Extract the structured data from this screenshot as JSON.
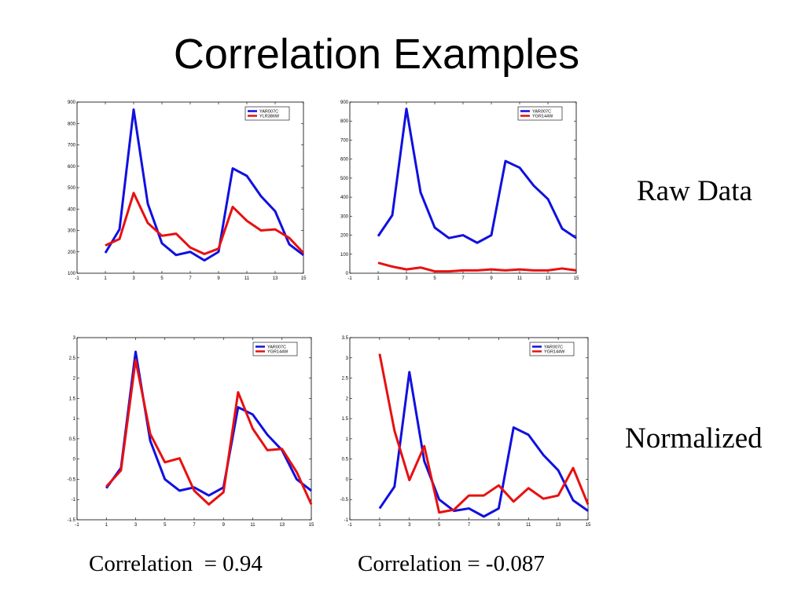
{
  "title": "Correlation Examples",
  "row_labels": {
    "raw": "Raw Data",
    "normalized": "Normalized"
  },
  "captions": {
    "left": "Correlation  = 0.94",
    "right": "Correlation = -0.087"
  },
  "colors": {
    "series1": "#1010e0",
    "series2": "#e81010",
    "axis": "#000000"
  },
  "chart_data": [
    {
      "type": "line",
      "xlim": [
        -1,
        15
      ],
      "ylim": [
        100,
        900
      ],
      "xticks": [
        -1,
        1,
        3,
        5,
        7,
        9,
        11,
        13,
        15
      ],
      "yticks": [
        100,
        200,
        300,
        400,
        500,
        600,
        700,
        800,
        900
      ],
      "legend": "top-right",
      "x": [
        1,
        2,
        3,
        4,
        5,
        6,
        7,
        8,
        9,
        10,
        11,
        12,
        13,
        14,
        15
      ],
      "series": [
        {
          "name": "YAR007C",
          "color": "#1010e0",
          "values": [
            195,
            305,
            865,
            425,
            240,
            185,
            200,
            160,
            200,
            590,
            555,
            460,
            390,
            235,
            185
          ]
        },
        {
          "name": "YLR386W",
          "color": "#e81010",
          "values": [
            230,
            260,
            475,
            335,
            275,
            285,
            220,
            190,
            215,
            410,
            345,
            300,
            305,
            265,
            195
          ]
        }
      ]
    },
    {
      "type": "line",
      "xlim": [
        -1,
        15
      ],
      "ylim": [
        0,
        900
      ],
      "xticks": [
        -1,
        1,
        3,
        5,
        7,
        9,
        11,
        13,
        15
      ],
      "yticks": [
        0,
        100,
        200,
        300,
        400,
        500,
        600,
        700,
        800,
        900
      ],
      "legend": "top-right",
      "x": [
        1,
        2,
        3,
        4,
        5,
        6,
        7,
        8,
        9,
        10,
        11,
        12,
        13,
        14,
        15
      ],
      "series": [
        {
          "name": "YAR007C",
          "color": "#1010e0",
          "values": [
            195,
            305,
            865,
            425,
            240,
            185,
            200,
            160,
            200,
            590,
            555,
            460,
            390,
            235,
            185
          ]
        },
        {
          "name": "YGR144W",
          "color": "#e81010",
          "values": [
            55,
            35,
            20,
            30,
            10,
            10,
            15,
            15,
            20,
            15,
            20,
            15,
            15,
            25,
            15
          ]
        }
      ]
    },
    {
      "type": "line",
      "xlim": [
        -1,
        15
      ],
      "ylim": [
        -1.5,
        3
      ],
      "xticks": [
        -1,
        1,
        3,
        5,
        7,
        9,
        11,
        13,
        15
      ],
      "yticks": [
        -1.5,
        -1,
        -0.5,
        0,
        0.5,
        1,
        1.5,
        2,
        2.5,
        3
      ],
      "legend": "top-right",
      "x": [
        1,
        2,
        3,
        4,
        5,
        6,
        7,
        8,
        9,
        10,
        11,
        12,
        13,
        14,
        15
      ],
      "series": [
        {
          "name": "YAR007C",
          "color": "#1010e0",
          "values": [
            -0.72,
            -0.22,
            2.65,
            0.45,
            -0.5,
            -0.78,
            -0.7,
            -0.9,
            -0.7,
            1.28,
            1.1,
            0.6,
            0.22,
            -0.5,
            -0.78
          ]
        },
        {
          "name": "YGR144W",
          "color": "#e81010",
          "values": [
            -0.68,
            -0.28,
            2.45,
            0.62,
            -0.08,
            0.02,
            -0.78,
            -1.12,
            -0.82,
            1.65,
            0.75,
            0.22,
            0.25,
            -0.32,
            -1.12
          ]
        }
      ]
    },
    {
      "type": "line",
      "xlim": [
        -1,
        15
      ],
      "ylim": [
        -1,
        3.5
      ],
      "xticks": [
        -1,
        1,
        3,
        5,
        7,
        9,
        11,
        13,
        15
      ],
      "yticks": [
        -1,
        -0.5,
        0,
        0.5,
        1,
        1.5,
        2,
        2.5,
        3,
        3.5
      ],
      "legend": "top-right",
      "x": [
        1,
        2,
        3,
        4,
        5,
        6,
        7,
        8,
        9,
        10,
        11,
        12,
        13,
        14,
        15
      ],
      "series": [
        {
          "name": "YAR007C",
          "color": "#1010e0",
          "values": [
            -0.72,
            -0.18,
            2.65,
            0.45,
            -0.5,
            -0.78,
            -0.72,
            -0.92,
            -0.72,
            1.28,
            1.1,
            0.6,
            0.22,
            -0.52,
            -0.78
          ]
        },
        {
          "name": "YGR144W",
          "color": "#e81010",
          "values": [
            3.1,
            1.2,
            -0.02,
            0.82,
            -0.82,
            -0.75,
            -0.4,
            -0.4,
            -0.15,
            -0.55,
            -0.22,
            -0.48,
            -0.4,
            0.28,
            -0.62
          ]
        }
      ]
    }
  ]
}
